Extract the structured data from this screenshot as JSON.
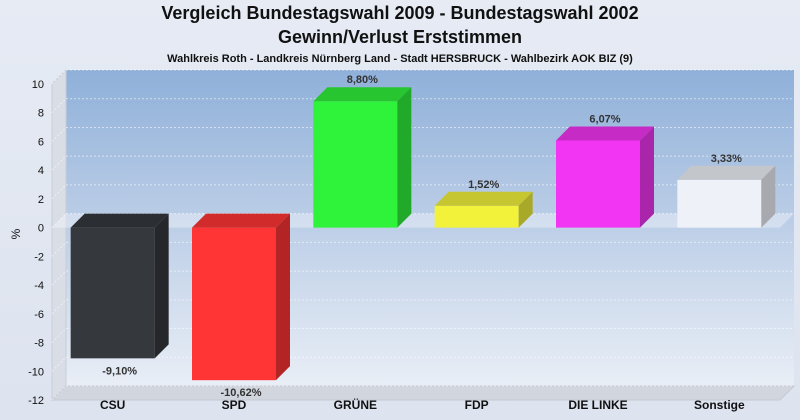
{
  "chart_data": {
    "type": "bar",
    "title": "Vergleich Bundestagswahl 2009 - Bundestagswahl 2002",
    "subtitle": "Gewinn/Verlust Erststimmen",
    "caption": "Wahlkreis Roth - Landkreis Nürnberg Land - Stadt HERSBRUCK - Wahlbezirk AOK BIZ (9)",
    "ylabel": "%",
    "xlabel": "",
    "ylim": [
      -12,
      10
    ],
    "yticks": [
      "10",
      "8",
      "6",
      "4",
      "2",
      "0",
      "-2",
      "-4",
      "-6",
      "-8",
      "-10",
      "-12"
    ],
    "grid": true,
    "categories": [
      "CSU",
      "SPD",
      "GRÜNE",
      "FDP",
      "DIE LINKE",
      "Sonstige"
    ],
    "values": [
      -9.1,
      -10.62,
      8.8,
      1.52,
      6.07,
      3.33
    ],
    "value_labels": [
      "-9,10%",
      "-10,62%",
      "8,80%",
      "1,52%",
      "6,07%",
      "3,33%"
    ],
    "colors": [
      "#35383d",
      "#ff3535",
      "#2ff23a",
      "#f2f23a",
      "#f235f2",
      "#eef2f8"
    ]
  }
}
